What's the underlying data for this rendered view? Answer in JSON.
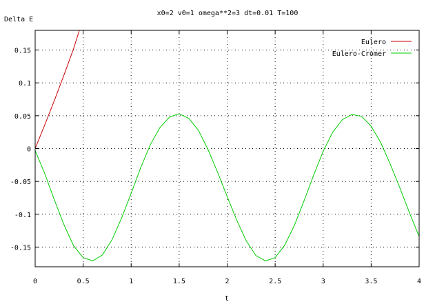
{
  "chart_data": {
    "type": "line",
    "title": "x0=2 v0=1 omega**2=3 dt=0.01 T=100",
    "xlabel": "t",
    "ylabel": "Delta E",
    "xlim": [
      0,
      4
    ],
    "ylim": [
      -0.18,
      0.18
    ],
    "x_ticks": [
      "0",
      "0.5",
      "1",
      "1.5",
      "2",
      "2.5",
      "3",
      "3.5",
      "4"
    ],
    "y_ticks": [
      "0.15",
      "0.1",
      "0.05",
      "0",
      "-0.05",
      "-0.1",
      "-0.15"
    ],
    "grid": true,
    "legend_position": "top-right",
    "series": [
      {
        "name": "Eulero",
        "color": "#cc0000",
        "x": [
          0,
          0.1,
          0.2,
          0.3,
          0.4,
          0.46
        ],
        "y": [
          0,
          0.036,
          0.073,
          0.112,
          0.152,
          0.18
        ]
      },
      {
        "name": "Eulero-Cromer",
        "color": "#00cc00",
        "x": [
          0,
          0.1,
          0.2,
          0.3,
          0.4,
          0.5,
          0.6,
          0.7,
          0.8,
          0.9,
          1.0,
          1.1,
          1.2,
          1.3,
          1.4,
          1.5,
          1.6,
          1.7,
          1.8,
          1.9,
          2.0,
          2.1,
          2.2,
          2.3,
          2.4,
          2.5,
          2.6,
          2.7,
          2.8,
          2.9,
          3.0,
          3.1,
          3.2,
          3.3,
          3.4,
          3.5,
          3.6,
          3.7,
          3.8,
          3.9,
          4.0
        ],
        "y": [
          -0.003,
          -0.038,
          -0.078,
          -0.116,
          -0.148,
          -0.166,
          -0.171,
          -0.162,
          -0.139,
          -0.106,
          -0.068,
          -0.029,
          0.006,
          0.032,
          0.048,
          0.053,
          0.046,
          0.028,
          -0.001,
          -0.036,
          -0.073,
          -0.109,
          -0.141,
          -0.163,
          -0.171,
          -0.166,
          -0.147,
          -0.117,
          -0.08,
          -0.041,
          -0.004,
          0.025,
          0.044,
          0.052,
          0.049,
          0.034,
          0.009,
          -0.024,
          -0.06,
          -0.098,
          -0.134
        ]
      }
    ]
  }
}
